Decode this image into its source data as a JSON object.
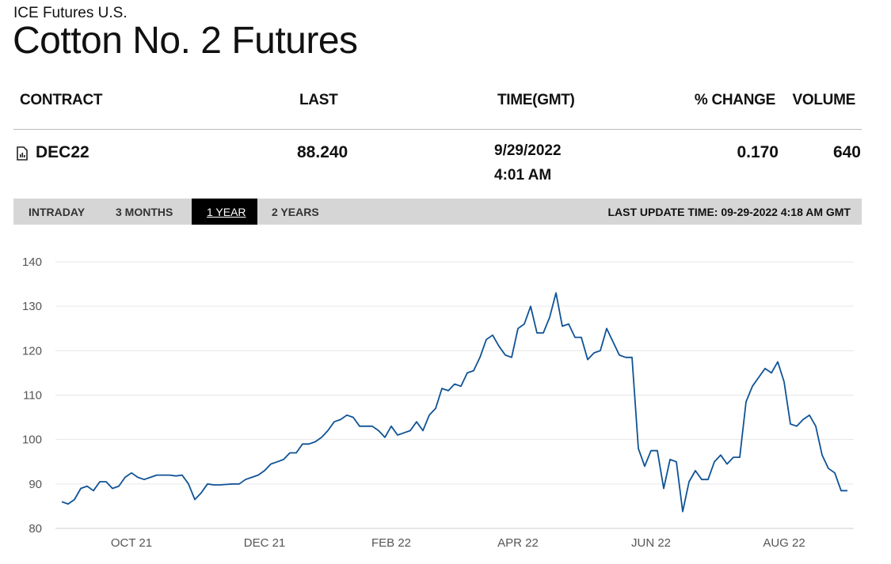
{
  "header": {
    "exchange": "ICE Futures U.S.",
    "title": "Cotton No. 2 Futures"
  },
  "table": {
    "columns": [
      "CONTRACT",
      "LAST",
      "TIME(GMT)",
      "% CHANGE",
      "VOLUME"
    ],
    "rows": [
      [
        "DEC22",
        "88.240",
        [
          "9/29/2022",
          "4:01 AM"
        ],
        "0.170",
        "640"
      ]
    ]
  },
  "tabs": [
    "INTRADAY",
    "3 MONTHS",
    "1 YEAR",
    "2 YEARS"
  ],
  "last_update": "LAST UPDATE TIME: 09-29-2022 4:18 AM GMT",
  "chart_data": {
    "type": "line",
    "color": "#0f5396",
    "grid": true,
    "ylim": [
      80,
      140
    ],
    "yticks": [
      80,
      90,
      100,
      110,
      120,
      130,
      140
    ],
    "categories": [
      null,
      null,
      null,
      null,
      null,
      null,
      null,
      null,
      null,
      null,
      null,
      "OCT 21",
      null,
      null,
      null,
      null,
      null,
      null,
      null,
      null,
      null,
      null,
      null,
      null,
      null,
      null,
      null,
      null,
      null,
      null,
      null,
      null,
      "DEC 21",
      null,
      null,
      null,
      null,
      null,
      null,
      null,
      null,
      null,
      null,
      null,
      null,
      null,
      null,
      null,
      null,
      null,
      null,
      null,
      "FEB 22",
      null,
      null,
      null,
      null,
      null,
      null,
      null,
      null,
      null,
      null,
      null,
      null,
      null,
      null,
      null,
      null,
      null,
      null,
      null,
      "APR 22",
      null,
      null,
      null,
      null,
      null,
      null,
      null,
      null,
      null,
      null,
      null,
      null,
      null,
      null,
      null,
      null,
      null,
      null,
      null,
      null,
      "JUN 22",
      null,
      null,
      null,
      null,
      null,
      null,
      null,
      null,
      null,
      null,
      null,
      null,
      null,
      null,
      null,
      null,
      null,
      null,
      null,
      null,
      "AUG 22",
      null,
      null,
      null,
      null,
      null,
      null,
      null,
      null,
      null,
      null
    ],
    "values": [
      86,
      85.5,
      86.5,
      89,
      89.5,
      88.5,
      90.5,
      90.5,
      89,
      89.5,
      91.5,
      92.5,
      91.5,
      91,
      91.5,
      92,
      92,
      92,
      91.8,
      92,
      90,
      86.5,
      88,
      90,
      89.8,
      89.8,
      89.9,
      90,
      90,
      91,
      91.5,
      92,
      93,
      94.5,
      95,
      95.5,
      97,
      97,
      99,
      99,
      99.5,
      100.5,
      102,
      104,
      104.5,
      105.5,
      105,
      103,
      103,
      103,
      102,
      100.5,
      103,
      101,
      101.5,
      102,
      104,
      102,
      105.5,
      107,
      111.5,
      111,
      112.5,
      112,
      115,
      115.5,
      118.5,
      122.5,
      123.5,
      121,
      119,
      118.5,
      125,
      126,
      130,
      124,
      124,
      127.5,
      133,
      125.5,
      126,
      123,
      123,
      118,
      119.5,
      120,
      125,
      122,
      119,
      118.5,
      118.5,
      98,
      94,
      97.5,
      97.5,
      89,
      95.5,
      95,
      83.8,
      90.5,
      93,
      91,
      91,
      95,
      96.5,
      94.5,
      96,
      96,
      108.5,
      112,
      114,
      116,
      115,
      117.5,
      113,
      103.5,
      103,
      104.5,
      105.5,
      103,
      96.5,
      93.5,
      92.5,
      88.5,
      88.5
    ]
  }
}
